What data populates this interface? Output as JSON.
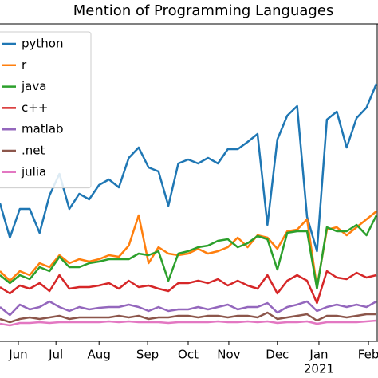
{
  "chart_data": {
    "type": "line",
    "title": "Mention of Programming Languages",
    "categories": [
      null,
      null,
      null,
      null,
      null,
      null,
      null,
      null,
      null,
      null,
      null,
      null,
      null,
      null,
      null,
      null,
      null,
      null,
      null,
      null,
      null,
      null,
      null,
      null,
      null,
      null,
      null,
      null,
      null,
      null,
      null,
      null,
      null,
      null,
      null,
      null,
      null,
      null,
      null
    ],
    "xticks": [
      {
        "value": 1.85,
        "label": "Jun"
      },
      {
        "value": 5.65,
        "label": "Jul"
      },
      {
        "value": 10,
        "label": "Aug"
      },
      {
        "value": 14.9,
        "label": "Sep"
      },
      {
        "value": 19,
        "label": "Oct"
      },
      {
        "value": 23.1,
        "label": "Nov"
      },
      {
        "value": 28,
        "label": "Dec"
      },
      {
        "value": 32.2,
        "label": "Jan"
      },
      {
        "value": 37.2,
        "label": "Feb"
      }
    ],
    "xtick_sublabel": {
      "value": 32.2,
      "label": "2021"
    },
    "ylim": [
      0,
      398
    ],
    "legend": "upper left",
    "series": [
      {
        "name": "python",
        "color": "#1f77b4",
        "values": [
          173,
          130,
          166,
          166,
          136,
          183,
          210,
          166,
          185,
          178,
          196,
          203,
          193,
          230,
          243,
          218,
          213,
          170,
          223,
          228,
          223,
          230,
          223,
          241,
          241,
          250,
          260,
          146,
          253,
          283,
          295,
          156,
          113,
          278,
          288,
          243,
          280,
          293,
          323
        ]
      },
      {
        "name": "r",
        "color": "#ff7f0e",
        "values": [
          88,
          76,
          88,
          83,
          98,
          93,
          108,
          98,
          103,
          100,
          103,
          108,
          106,
          120,
          158,
          98,
          118,
          110,
          108,
          110,
          116,
          110,
          113,
          118,
          130,
          118,
          133,
          130,
          116,
          138,
          140,
          153,
          68,
          140,
          143,
          133,
          143,
          153,
          163
        ]
      },
      {
        "name": "java",
        "color": "#2ca02c",
        "values": [
          83,
          73,
          83,
          78,
          93,
          88,
          106,
          93,
          93,
          98,
          100,
          103,
          103,
          103,
          110,
          108,
          113,
          76,
          110,
          113,
          118,
          120,
          126,
          128,
          118,
          123,
          132,
          128,
          90,
          136,
          138,
          138,
          66,
          143,
          138,
          138,
          146,
          133,
          158
        ]
      },
      {
        "name": "c++",
        "color": "#d62728",
        "values": [
          68,
          60,
          70,
          66,
          73,
          63,
          83,
          66,
          68,
          68,
          70,
          73,
          66,
          76,
          68,
          70,
          66,
          63,
          73,
          73,
          76,
          73,
          78,
          70,
          76,
          70,
          66,
          83,
          60,
          76,
          83,
          76,
          48,
          88,
          80,
          78,
          86,
          80,
          83
        ]
      },
      {
        "name": "matlab",
        "color": "#9467bd",
        "values": [
          43,
          33,
          46,
          40,
          43,
          50,
          43,
          38,
          43,
          40,
          42,
          43,
          43,
          46,
          43,
          38,
          43,
          38,
          40,
          40,
          43,
          40,
          43,
          46,
          40,
          43,
          43,
          48,
          36,
          43,
          46,
          50,
          38,
          43,
          46,
          43,
          46,
          43,
          50
        ]
      },
      {
        "name": ".net",
        "color": "#8c564b",
        "values": [
          28,
          24,
          28,
          30,
          28,
          30,
          32,
          28,
          30,
          30,
          30,
          30,
          32,
          30,
          32,
          28,
          30,
          30,
          32,
          32,
          30,
          32,
          32,
          30,
          32,
          32,
          30,
          36,
          28,
          30,
          32,
          34,
          26,
          32,
          32,
          30,
          32,
          34,
          34
        ]
      },
      {
        "name": "julia",
        "color": "#e377c2",
        "values": [
          22,
          20,
          23,
          23,
          24,
          23,
          24,
          24,
          24,
          24,
          24,
          25,
          24,
          25,
          24,
          24,
          24,
          23,
          24,
          24,
          24,
          24,
          25,
          24,
          24,
          25,
          24,
          25,
          23,
          24,
          24,
          25,
          22,
          24,
          24,
          24,
          24,
          25,
          26
        ]
      }
    ]
  }
}
